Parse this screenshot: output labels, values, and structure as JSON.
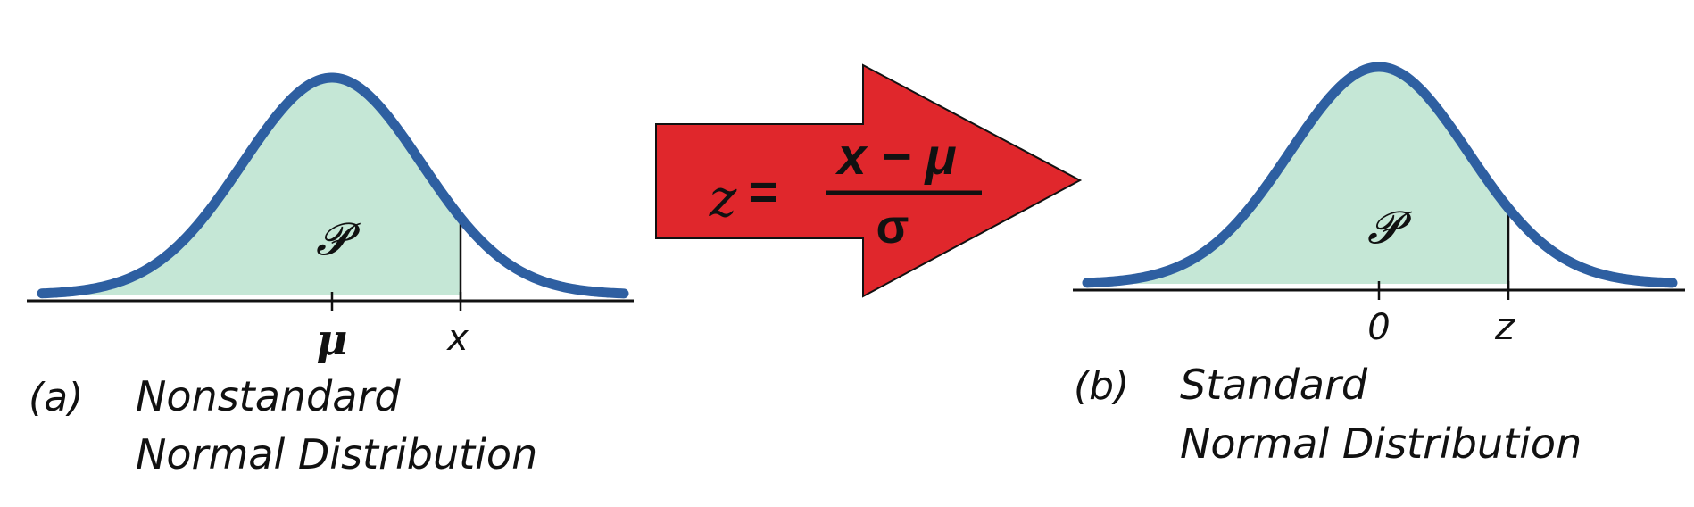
{
  "colors": {
    "curve": "#2E5FA1",
    "fill": "#C5E7D6",
    "arrow": "#E0272C",
    "ink": "#111111",
    "formula_text": "#111111"
  },
  "panel_a": {
    "area_label": "𝓟",
    "mean_label": "μ",
    "x_label": "x",
    "caption_letter": "(a)",
    "caption_line1": "Nonstandard",
    "caption_line2": "Normal Distribution"
  },
  "arrow": {
    "lhs": "z",
    "equals": "=",
    "numerator": "x − μ",
    "denominator": "σ"
  },
  "panel_b": {
    "area_label": "𝓟",
    "zero_label": "0",
    "z_label": "z",
    "caption_letter": "(b)",
    "caption_line1": "Standard",
    "caption_line2": "Normal Distribution"
  }
}
